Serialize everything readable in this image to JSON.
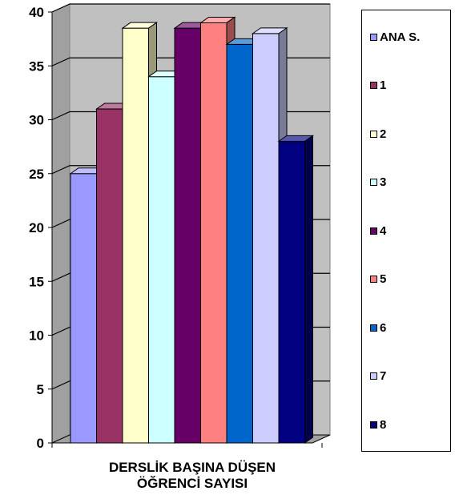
{
  "chart_data": {
    "type": "bar",
    "title": "",
    "xlabel": "DERSLİK BAŞINA DÜŞEN ÖĞRENCİ SAYISI",
    "xlabel_lines": [
      "DERSLİK BAŞINA DÜŞEN",
      "ÖĞRENCİ SAYISI"
    ],
    "ylabel": "",
    "ylim": [
      0,
      40
    ],
    "yticks": [
      0,
      5,
      10,
      15,
      20,
      25,
      30,
      35,
      40
    ],
    "grid": true,
    "legend_position": "right",
    "render_3d": true,
    "series": [
      {
        "name": "ANA S.",
        "value": 25,
        "color": "#9999ff"
      },
      {
        "name": "1",
        "value": 31,
        "color": "#993366"
      },
      {
        "name": "2",
        "value": 38.5,
        "color": "#ffffcc"
      },
      {
        "name": "3",
        "value": 34,
        "color": "#ccffff"
      },
      {
        "name": "4",
        "value": 38.5,
        "color": "#660066"
      },
      {
        "name": "5",
        "value": 39,
        "color": "#ff8080"
      },
      {
        "name": "6",
        "value": 37,
        "color": "#0066cc"
      },
      {
        "name": "7",
        "value": 38,
        "color": "#ccccff"
      },
      {
        "name": "8",
        "value": 28,
        "color": "#000080"
      }
    ]
  }
}
